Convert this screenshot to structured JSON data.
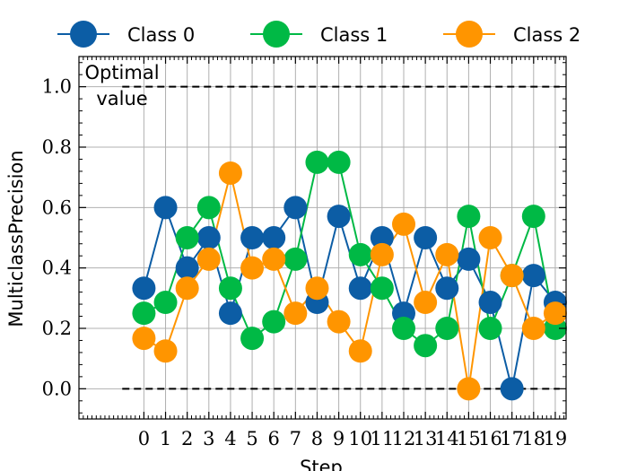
{
  "chart_data": {
    "type": "line",
    "title": "",
    "xlabel": "Step",
    "ylabel": "MulticlassPrecision",
    "x": [
      0,
      1,
      2,
      3,
      4,
      5,
      6,
      7,
      8,
      9,
      10,
      11,
      12,
      13,
      14,
      15,
      16,
      17,
      18,
      19
    ],
    "xlim": [
      -3,
      19.5
    ],
    "ylim": [
      -0.1,
      1.1
    ],
    "y_ticks": [
      "0.0",
      "0.2",
      "0.4",
      "0.6",
      "0.8",
      "1.0"
    ],
    "x_ticks": [
      "0",
      "1",
      "2",
      "3",
      "4",
      "5",
      "6",
      "7",
      "8",
      "9",
      "10",
      "11",
      "12",
      "13",
      "14",
      "15",
      "16",
      "17",
      "18",
      "19"
    ],
    "grid": true,
    "legend_position": "top",
    "series": [
      {
        "name": "Class 0",
        "color": "#0C5DA5",
        "values": [
          0.333,
          0.6,
          0.4,
          0.5,
          0.25,
          0.5,
          0.5,
          0.6,
          0.286,
          0.571,
          0.333,
          0.5,
          0.25,
          0.5,
          0.333,
          0.429,
          0.286,
          0.0,
          0.375,
          0.286
        ]
      },
      {
        "name": "Class 1",
        "color": "#00B945",
        "values": [
          0.25,
          0.286,
          0.5,
          0.6,
          0.333,
          0.167,
          0.222,
          0.429,
          0.75,
          0.75,
          0.444,
          0.333,
          0.2,
          0.143,
          0.2,
          0.571,
          0.2,
          0.375,
          0.571,
          0.2
        ]
      },
      {
        "name": "Class 2",
        "color": "#FF9500",
        "values": [
          0.167,
          0.125,
          0.333,
          0.429,
          0.714,
          0.4,
          0.429,
          0.25,
          0.333,
          0.222,
          0.125,
          0.444,
          0.545,
          0.286,
          0.444,
          0.0,
          0.5,
          0.375,
          0.2,
          0.25
        ]
      }
    ],
    "reference_lines": [
      {
        "y": 1.0,
        "style": "dashed",
        "color": "#000000"
      },
      {
        "y": 0.0,
        "style": "dashed",
        "color": "#000000"
      }
    ],
    "annotation": {
      "line1": "Optimal",
      "line2": "value"
    }
  }
}
